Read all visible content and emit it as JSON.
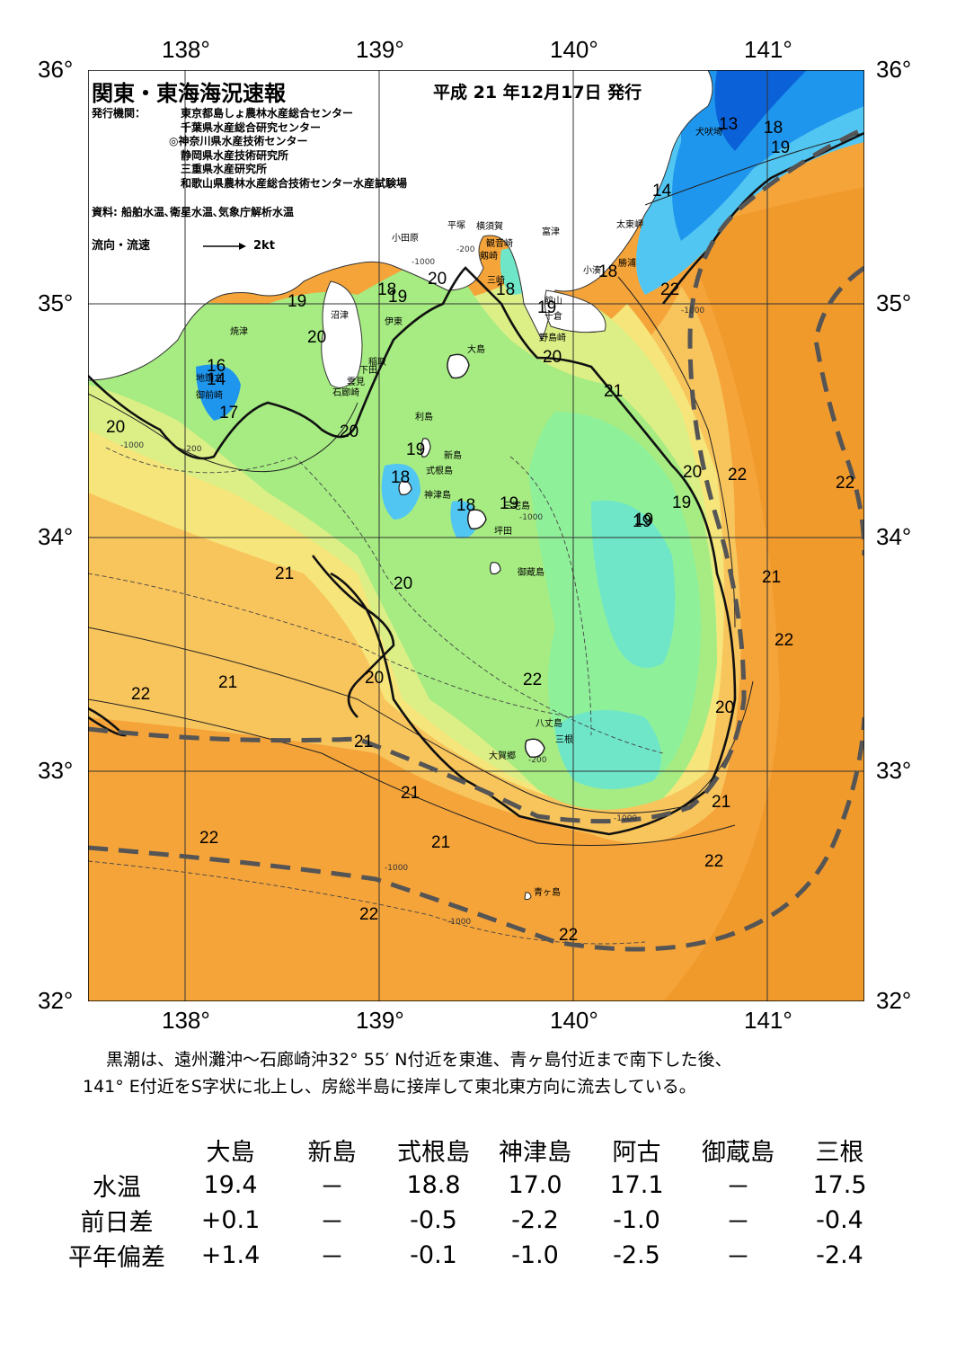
{
  "header": {
    "title": "関東・東海海況速報",
    "issue_date": "平成 21 年12月17日 発行",
    "publisher_label": "発行機関：",
    "publishers": [
      "東京都島しょ農林水産総合センター",
      "千葉県水産総合研究センター",
      "◎神奈川県水産技術センター",
      "静岡県水産技術研究所",
      "三重県水産研究所",
      "和歌山県農林水産総合技術センター水産試験場"
    ],
    "data_source": "資料: 船舶水温､衛星水温､気象庁解析水温",
    "flow_legend_label": "流向・流速",
    "flow_legend_scale": "2kt"
  },
  "map": {
    "lon_labels": [
      "138°",
      "139°",
      "140°",
      "141°"
    ],
    "lat_labels": [
      "36°",
      "35°",
      "34°",
      "33°",
      "32°"
    ],
    "colors": {
      "deep_blue": "#0b62d8",
      "blue": "#1f96ee",
      "light_blue": "#52c6f2",
      "aqua": "#6fe6c8",
      "green_cool": "#8ff09a",
      "green": "#a6ec82",
      "yellow_green": "#dcef86",
      "yellow": "#f6e57a",
      "orange_light": "#f8c45c",
      "orange": "#f5a43a",
      "orange_deep": "#f19a2c",
      "land": "#ffffff",
      "kuroshio_axis": "#555555"
    },
    "place_names": [
      "犬吠埼",
      "太東岬",
      "勝浦",
      "小湊",
      "富津",
      "横須賀",
      "観音崎",
      "平塚",
      "剱崎",
      "三崎",
      "小田原",
      "館山",
      "千倉",
      "野島崎",
      "沼津",
      "伊東",
      "焼津",
      "稲取",
      "下田",
      "雲見",
      "石廊崎",
      "地頭方",
      "御前崎",
      "大島",
      "利島",
      "新島",
      "式根島",
      "神津島",
      "三宅島",
      "坪田",
      "御蔵島",
      "八丈島",
      "三根",
      "大賀郷",
      "青ヶ島"
    ],
    "isotherm_labels": [
      "13",
      "18",
      "19",
      "14",
      "18",
      "22",
      "19",
      "18",
      "19",
      "20",
      "18",
      "19",
      "20",
      "16",
      "14",
      "17",
      "20",
      "20",
      "21",
      "20",
      "19",
      "18",
      "18",
      "19",
      "19",
      "19",
      "20",
      "22",
      "22",
      "21",
      "20",
      "21",
      "22",
      "21",
      "22",
      "21",
      "20",
      "20",
      "21",
      "21",
      "21",
      "22",
      "22",
      "22",
      "22",
      "22",
      "19"
    ],
    "depth_labels": [
      "-200",
      "-1000"
    ]
  },
  "summary": [
    "黒潮は、遠州灘沖～石廊崎沖32° 55′ N付近を東進、青ヶ島付近まで南下した後、",
    "141° E付近をS字状に北上し、房総半島に接岸して東北東方向に流去している。"
  ],
  "observations": {
    "columns": [
      "大島",
      "新島",
      "式根島",
      "神津島",
      "阿古",
      "御蔵島",
      "三根"
    ],
    "rows": [
      {
        "label": "水温",
        "values": [
          "19.4",
          "－",
          "18.8",
          "17.0",
          "17.1",
          "－",
          "17.5"
        ]
      },
      {
        "label": "前日差",
        "values": [
          "+0.1",
          "－",
          "-0.5",
          "-2.2",
          "-1.0",
          "－",
          "-0.4"
        ]
      },
      {
        "label": "平年偏差",
        "values": [
          "+1.4",
          "－",
          "-0.1",
          "-1.0",
          "-2.5",
          "－",
          "-2.4"
        ]
      }
    ]
  }
}
